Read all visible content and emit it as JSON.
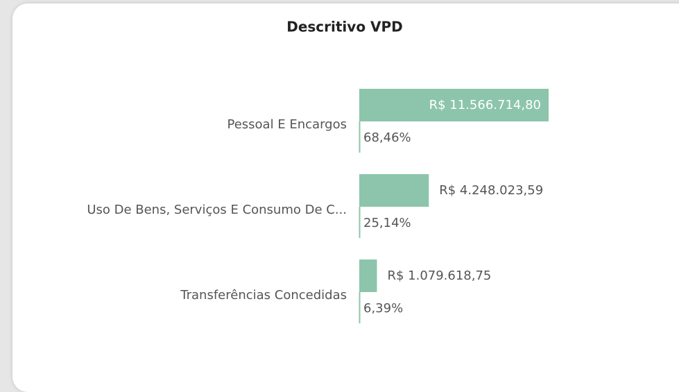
{
  "chart_data": {
    "type": "bar",
    "orientation": "horizontal",
    "title": "Descritivo VPD",
    "categories": [
      "Pessoal E Encargos",
      "Uso De Bens, Serviços E Consumo De C...",
      "Transferências Concedidas"
    ],
    "values": [
      11566714.8,
      4248023.59,
      1079618.75
    ],
    "value_labels": [
      "R$ 11.566.714,80",
      "R$ 4.248.023,59",
      "R$ 1.079.618,75"
    ],
    "percent_labels": [
      "68,46%",
      "25,14%",
      "6,39%"
    ],
    "color": "#8cc5ab"
  }
}
